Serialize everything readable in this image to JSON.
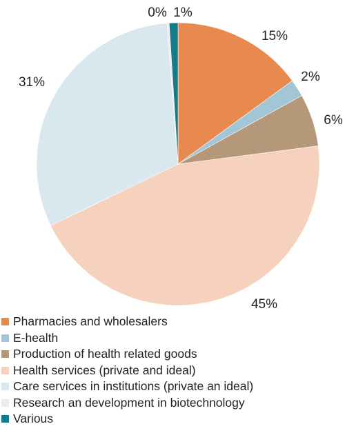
{
  "chart_data": {
    "type": "pie",
    "title": "",
    "legend_position": "bottom",
    "slices": [
      {
        "name": "Pharmacies and wholesalers",
        "value": 15,
        "label": "15%",
        "color": "#e8894f"
      },
      {
        "name": "E-health",
        "value": 2,
        "label": "2%",
        "color": "#a3c6d6"
      },
      {
        "name": "Production of health related goods",
        "value": 6,
        "label": "6%",
        "color": "#b5977a"
      },
      {
        "name": "Health services (private and ideal)",
        "value": 45,
        "label": "45%",
        "color": "#f6d2be"
      },
      {
        "name": "Care services in institutions (private an ideal)",
        "value": 31,
        "label": "31%",
        "color": "#d9e7ee"
      },
      {
        "name": "Research an development in biotechnology",
        "value": 0.25,
        "label": "0%",
        "color": "#efeaea"
      },
      {
        "name": "Various",
        "value": 1,
        "label": "1%",
        "color": "#137c8a"
      }
    ]
  }
}
